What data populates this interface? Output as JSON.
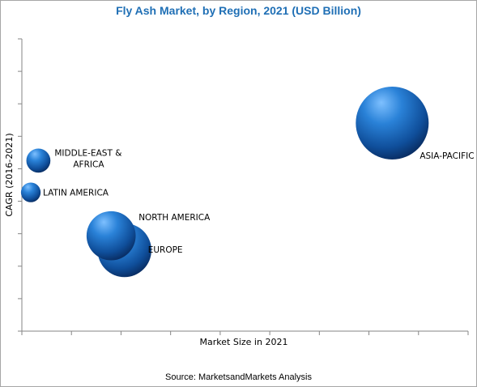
{
  "title": "Fly Ash Market, by Region, 2021 (USD Billion)",
  "source": "Source: MarketsandMarkets Analysis",
  "chart_data": {
    "type": "scatter",
    "title": "Fly Ash Market, by Region, 2021 (USD Billion)",
    "xlabel": "Market Size in 2021",
    "ylabel": "CAGR (2016-2021)",
    "xlim": [
      0,
      10
    ],
    "ylim": [
      0,
      10
    ],
    "grid": false,
    "points": [
      {
        "label": "ASIA-PACIFIC",
        "x": 8.3,
        "y": 7.2,
        "size": 5.5
      },
      {
        "label": "MIDDLE-EAST & AFRICA",
        "label_lines": [
          "MIDDLE-EAST &",
          "AFRICA"
        ],
        "x": 0.37,
        "y": 5.9,
        "size": 0.6
      },
      {
        "label": "LATIN AMERICA",
        "x": 0.2,
        "y": 4.8,
        "size": 0.4
      },
      {
        "label": "NORTH AMERICA",
        "x": 2.0,
        "y": 3.3,
        "size": 2.5
      },
      {
        "label": "EUROPE",
        "x": 2.3,
        "y": 2.8,
        "size": 3.0
      }
    ],
    "colors": {
      "bubble_light": "#7ec0ff",
      "bubble_mid": "#1f6fc4",
      "bubble_dark": "#08285a",
      "title": "#1f6fb5"
    }
  }
}
